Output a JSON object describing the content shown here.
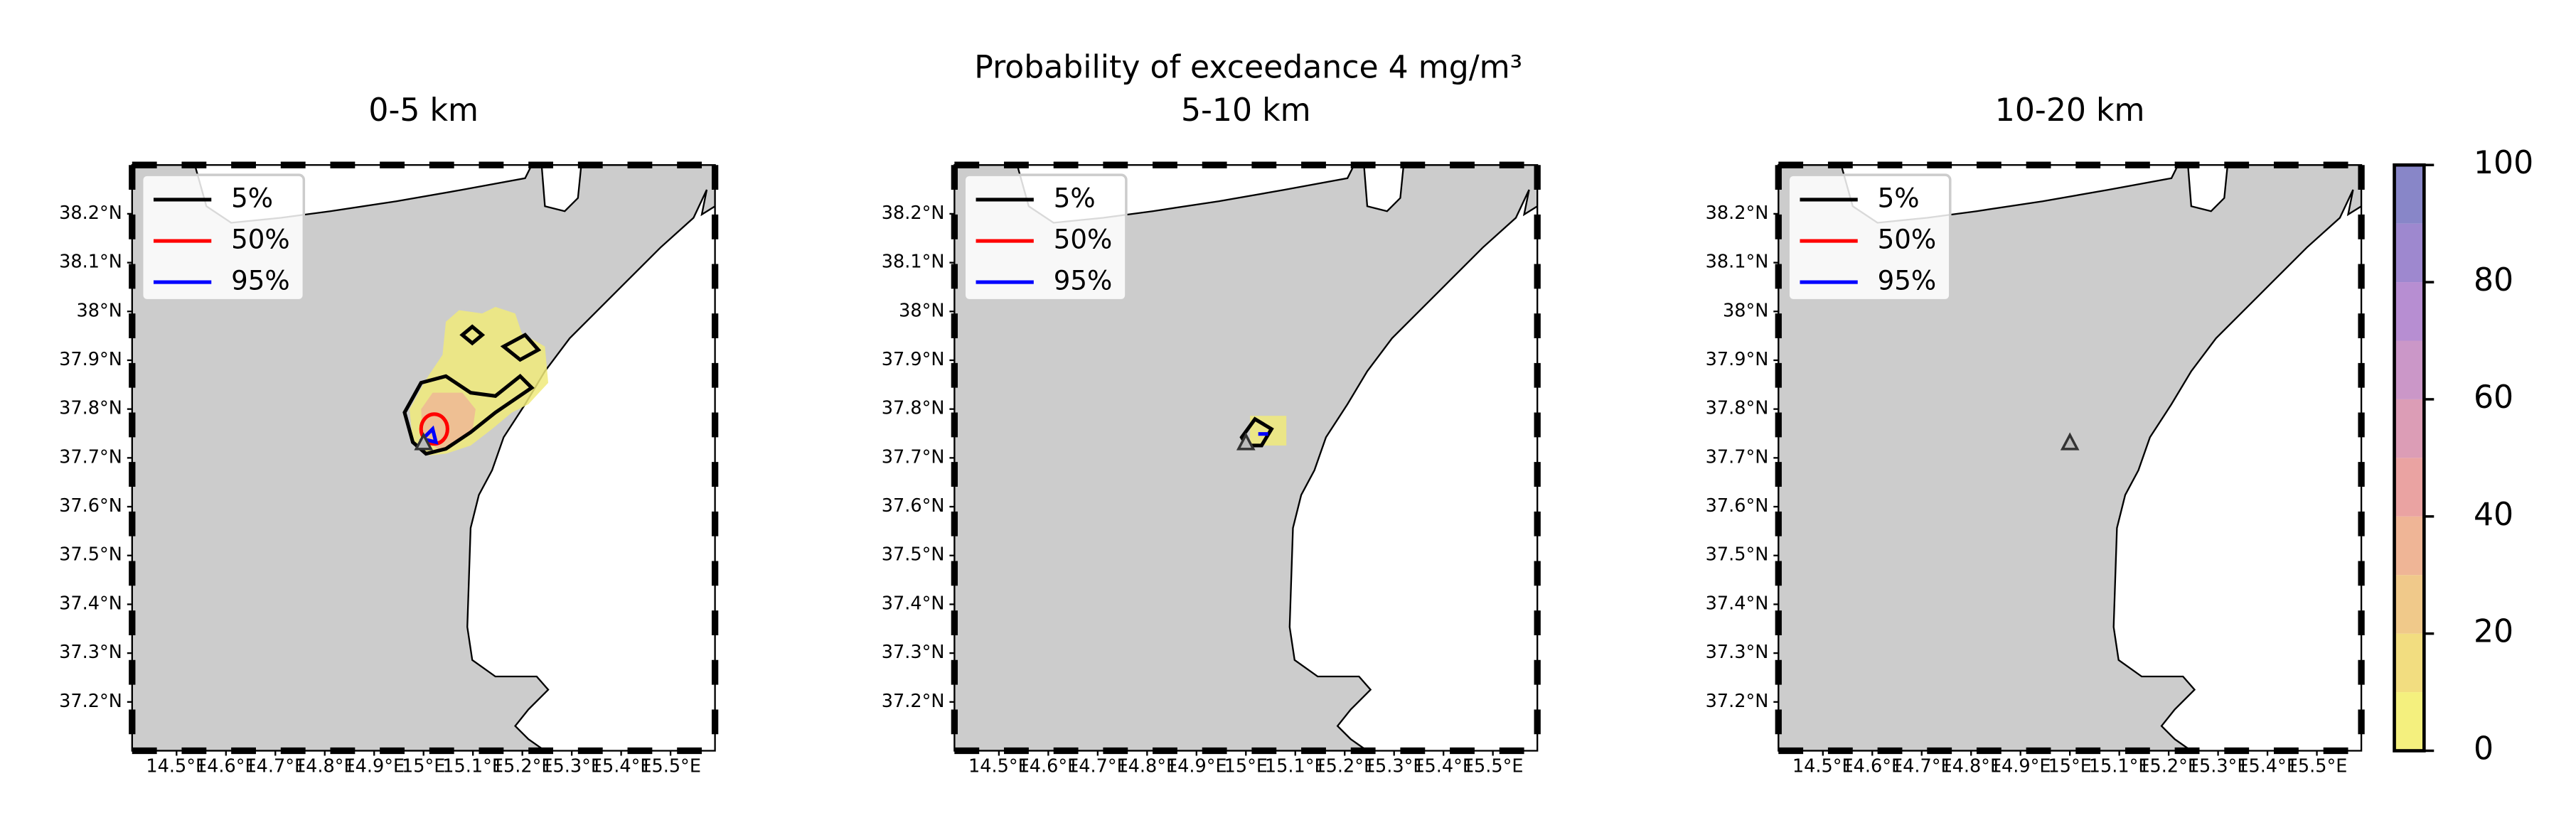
{
  "chart_data": {
    "type": "map",
    "title": "Probability of exceedance 4 mg/m³",
    "panels": [
      {
        "title": "0-5 km"
      },
      {
        "title": "5-10 km"
      },
      {
        "title": "10-20 km"
      }
    ],
    "xlim": [
      14.41,
      15.59
    ],
    "ylim": [
      37.1,
      38.3
    ],
    "xticks": [
      {
        "value": 14.5,
        "label": "14.5°E"
      },
      {
        "value": 14.6,
        "label": "14.6°E"
      },
      {
        "value": 14.7,
        "label": "14.7°E"
      },
      {
        "value": 14.8,
        "label": "14.8°E"
      },
      {
        "value": 14.9,
        "label": "14.9°E"
      },
      {
        "value": 15.0,
        "label": "15°E"
      },
      {
        "value": 15.1,
        "label": "15.1°E"
      },
      {
        "value": 15.2,
        "label": "15.2°E"
      },
      {
        "value": 15.3,
        "label": "15.3°E"
      },
      {
        "value": 15.4,
        "label": "15.4°E"
      },
      {
        "value": 15.5,
        "label": "15.5°E"
      }
    ],
    "yticks": [
      {
        "value": 38.2,
        "label": "38.2°N"
      },
      {
        "value": 38.1,
        "label": "38.1°N"
      },
      {
        "value": 38.0,
        "label": "38°N"
      },
      {
        "value": 37.9,
        "label": "37.9°N"
      },
      {
        "value": 37.8,
        "label": "37.8°N"
      },
      {
        "value": 37.7,
        "label": "37.7°N"
      },
      {
        "value": 37.6,
        "label": "37.6°N"
      },
      {
        "value": 37.5,
        "label": "37.5°N"
      },
      {
        "value": 37.4,
        "label": "37.4°N"
      },
      {
        "value": 37.3,
        "label": "37.3°N"
      },
      {
        "value": 37.2,
        "label": "37.2°N"
      }
    ],
    "series": [
      {
        "name": "5%",
        "color": "#000000"
      },
      {
        "name": "50%",
        "color": "#ff0000"
      },
      {
        "name": "95%",
        "color": "#0000ff"
      }
    ],
    "vent": {
      "lon": 15.0,
      "lat": 37.73
    },
    "colorbar": {
      "lim": [
        0,
        100
      ],
      "ticks": [
        0,
        20,
        40,
        60,
        80,
        100
      ],
      "levels": [
        0,
        10,
        20,
        30,
        40,
        50,
        60,
        70,
        80,
        90,
        100
      ],
      "colors": [
        "#f4f07e",
        "#f2dd80",
        "#f0c98a",
        "#efb596",
        "#eaa3a2",
        "#dc9db6",
        "#cb97c8",
        "#b78ed2",
        "#9e88cf",
        "#8886c8"
      ]
    }
  }
}
